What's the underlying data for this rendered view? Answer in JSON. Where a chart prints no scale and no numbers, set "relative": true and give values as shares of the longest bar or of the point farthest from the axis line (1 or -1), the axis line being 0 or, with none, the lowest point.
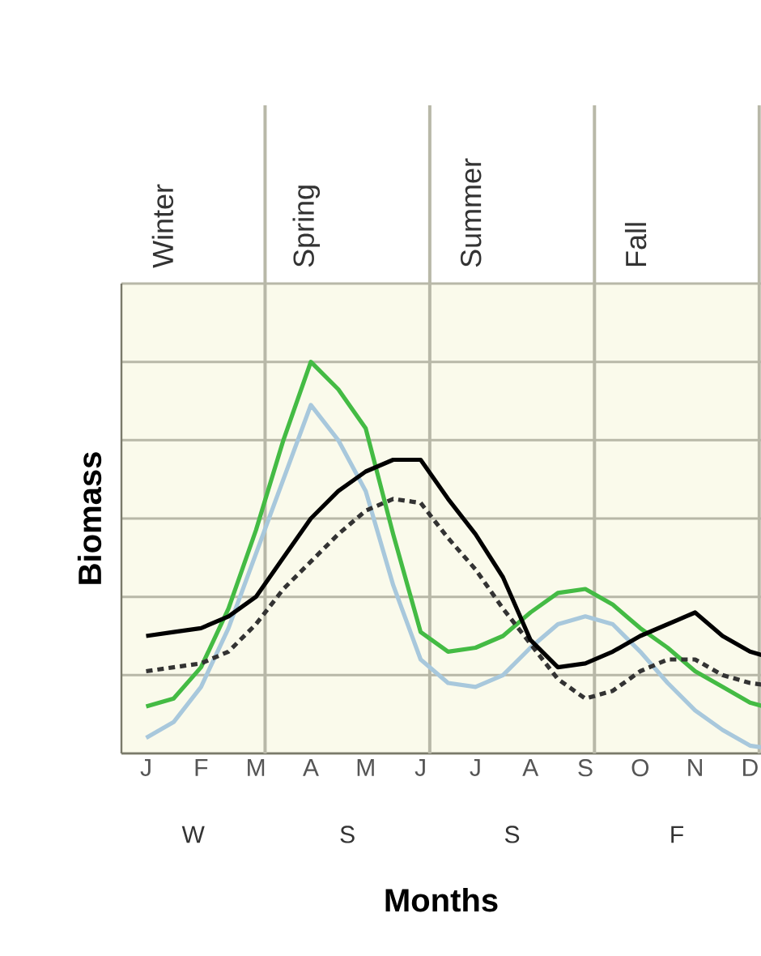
{
  "chart_data": {
    "type": "line",
    "xlabel": "Months",
    "ylabel": "Biomass",
    "relative": true,
    "grid": true,
    "marker": "none",
    "categories": [
      "J",
      null,
      "F",
      null,
      "M",
      null,
      "A",
      null,
      "M",
      null,
      "J",
      null,
      "J",
      null,
      "A",
      null,
      "S",
      null,
      "O",
      null,
      "N",
      null,
      "D",
      null
    ],
    "annotations": [
      "Winter",
      "Spring",
      "Summer",
      "Fall",
      "W",
      "S",
      "S",
      "F"
    ],
    "series": [
      {
        "color": "#a8c8dc",
        "line_style": "solid",
        "values": [
          0.04,
          0.08,
          0.17,
          0.32,
          0.51,
          0.7,
          0.89,
          0.8,
          0.67,
          0.43,
          0.24,
          0.18,
          0.17,
          0.2,
          0.27,
          0.33,
          0.35,
          0.33,
          0.26,
          0.18,
          0.11,
          0.06,
          0.02,
          0.01
        ]
      },
      {
        "color": "#44bb44",
        "line_style": "solid",
        "values": [
          0.12,
          0.14,
          0.22,
          0.37,
          0.57,
          0.8,
          1.0,
          0.93,
          0.83,
          0.56,
          0.31,
          0.26,
          0.27,
          0.3,
          0.36,
          0.41,
          0.42,
          0.38,
          0.32,
          0.27,
          0.21,
          0.17,
          0.13,
          0.11
        ]
      },
      {
        "color": "#333333",
        "line_style": "dashed",
        "values": [
          0.21,
          0.22,
          0.23,
          0.26,
          0.33,
          0.42,
          0.49,
          0.56,
          0.62,
          0.65,
          0.64,
          0.55,
          0.47,
          0.37,
          0.28,
          0.19,
          0.14,
          0.16,
          0.21,
          0.24,
          0.24,
          0.2,
          0.18,
          0.17
        ]
      },
      {
        "color": "#000000",
        "line_style": "solid",
        "values": [
          0.3,
          0.31,
          0.32,
          0.35,
          0.4,
          0.5,
          0.6,
          0.67,
          0.72,
          0.75,
          0.75,
          0.65,
          0.56,
          0.45,
          0.29,
          0.22,
          0.23,
          0.26,
          0.3,
          0.33,
          0.36,
          0.3,
          0.26,
          0.24
        ]
      }
    ]
  }
}
